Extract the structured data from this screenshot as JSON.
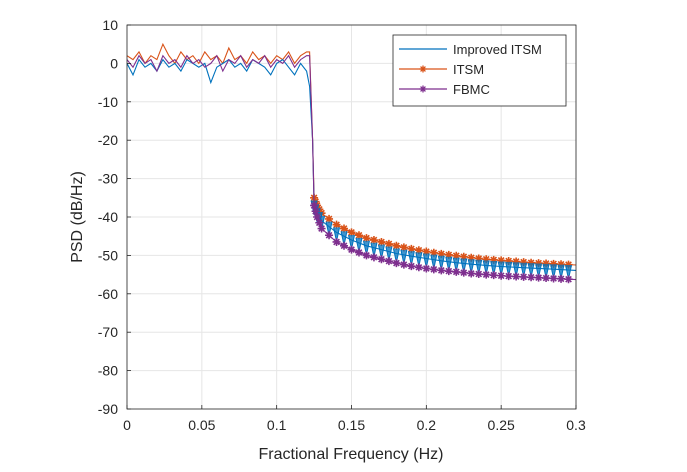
{
  "chart_data": {
    "type": "line",
    "title": "",
    "xlabel": "Fractional Frequency (Hz)",
    "ylabel": "PSD (dB/Hz)",
    "xlim": [
      0,
      0.3
    ],
    "ylim": [
      -90,
      10
    ],
    "xticks": [
      0,
      0.05,
      0.1,
      0.15,
      0.2,
      0.25,
      0.3
    ],
    "xtick_labels": [
      "0",
      "0.05",
      "0.1",
      "0.15",
      "0.2",
      "0.25",
      "0.3"
    ],
    "yticks": [
      10,
      0,
      -10,
      -20,
      -30,
      -40,
      -50,
      -60,
      -70,
      -80,
      -90
    ],
    "ytick_labels": [
      "10",
      "0",
      "-10",
      "-20",
      "-30",
      "-40",
      "-50",
      "-60",
      "-70",
      "-80",
      "-90"
    ],
    "grid": true,
    "legend_position": "top-right",
    "x": [
      0,
      0.004,
      0.008,
      0.012,
      0.016,
      0.02,
      0.024,
      0.028,
      0.032,
      0.036,
      0.04,
      0.044,
      0.048,
      0.052,
      0.056,
      0.06,
      0.064,
      0.068,
      0.072,
      0.076,
      0.08,
      0.084,
      0.088,
      0.092,
      0.096,
      0.1,
      0.104,
      0.108,
      0.112,
      0.116,
      0.12,
      0.122,
      0.124,
      0.125,
      0.127,
      0.13,
      0.14,
      0.15,
      0.16,
      0.17,
      0.18,
      0.19,
      0.2,
      0.21,
      0.22,
      0.23,
      0.24,
      0.25,
      0.26,
      0.27,
      0.28,
      0.29,
      0.3
    ],
    "series": [
      {
        "name": "Improved ITSM",
        "color": "#0072BD",
        "marker": "none",
        "values": [
          0,
          -3,
          1,
          -1,
          0,
          -2,
          1,
          -1,
          0,
          -2,
          1,
          0,
          -1,
          0,
          -5,
          -1,
          0,
          1,
          -1,
          0,
          -2,
          1,
          0,
          -1,
          -3,
          0,
          1,
          -1,
          -3,
          0,
          -2,
          -6,
          -20,
          -37,
          -39,
          -41,
          -44,
          -46,
          -47.5,
          -48.5,
          -49.5,
          -50.2,
          -50.8,
          -51.4,
          -51.9,
          -52.3,
          -52.6,
          -52.9,
          -53.1,
          -53.3,
          -53.5,
          -53.7,
          -53.9
        ]
      },
      {
        "name": "ITSM",
        "color": "#D95319",
        "marker": "*",
        "values": [
          2,
          1,
          3,
          0,
          2,
          1,
          5,
          2,
          0,
          3,
          1,
          2,
          0,
          3,
          1,
          2,
          0,
          4,
          1,
          2,
          0,
          3,
          1,
          2,
          0,
          2,
          1,
          3,
          0,
          2,
          3,
          3,
          -20,
          -35,
          -37,
          -39,
          -42,
          -44,
          -45.5,
          -46.5,
          -47.5,
          -48.3,
          -49,
          -49.6,
          -50.1,
          -50.6,
          -51,
          -51.3,
          -51.6,
          -51.9,
          -52.1,
          -52.3,
          -52.5
        ]
      },
      {
        "name": "FBMC",
        "color": "#7E2F8E",
        "marker": "*",
        "values": [
          1,
          -1,
          2,
          0,
          1,
          -2,
          2,
          0,
          1,
          -1,
          2,
          0,
          1,
          -1,
          0,
          2,
          -2,
          1,
          0,
          2,
          -1,
          1,
          0,
          2,
          -1,
          1,
          0,
          2,
          -1,
          1,
          2,
          2,
          -20,
          -37,
          -40,
          -43,
          -46.5,
          -48.5,
          -50,
          -51,
          -52,
          -52.8,
          -53.4,
          -53.9,
          -54.3,
          -54.7,
          -55,
          -55.3,
          -55.5,
          -55.7,
          -55.9,
          -56.1,
          -56.3
        ]
      }
    ]
  }
}
